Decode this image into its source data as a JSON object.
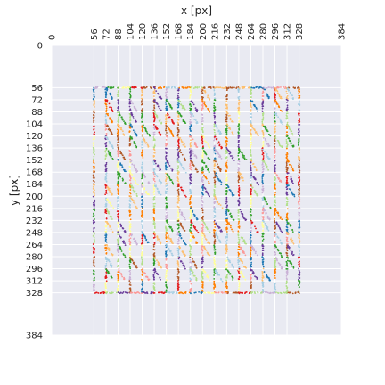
{
  "chart_data": {
    "type": "scatter",
    "title": "",
    "xlabel": "x [px]",
    "ylabel": "y [px]",
    "xlim": [
      0,
      384
    ],
    "ylim": [
      0,
      384
    ],
    "x_axis_position": "top",
    "y_inverted": true,
    "grid": true,
    "legend": "none",
    "background": "#e9eaf2",
    "xticks": [
      0,
      56,
      72,
      88,
      104,
      120,
      136,
      152,
      168,
      184,
      200,
      216,
      232,
      248,
      264,
      280,
      296,
      312,
      328,
      384
    ],
    "yticks": [
      0,
      56,
      72,
      88,
      104,
      120,
      136,
      152,
      168,
      184,
      200,
      216,
      232,
      248,
      264,
      280,
      296,
      312,
      328,
      384
    ],
    "grid_start": 56,
    "grid_end": 328,
    "grid_step": 16,
    "palette": [
      "#a6cee3",
      "#1f78b4",
      "#b2df8a",
      "#33a02c",
      "#fb9a99",
      "#e31a1c",
      "#fdbf6f",
      "#ff7f00",
      "#cab2d6",
      "#6a3d9a",
      "#ffff99",
      "#b15928"
    ],
    "seed": 7
  }
}
